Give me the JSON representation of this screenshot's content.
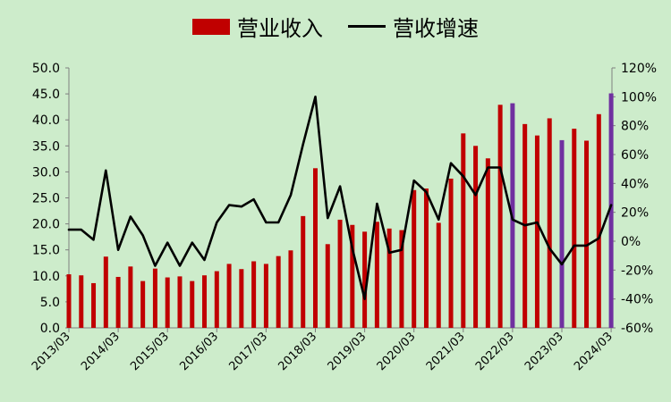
{
  "chart_data": {
    "type": "bar+line",
    "legend": {
      "bar_label": "营业收入",
      "line_label": "营收增速"
    },
    "x_labels": [
      "2013/03",
      "2014/03",
      "2015/03",
      "2016/03",
      "2017/03",
      "2018/03",
      "2019/03",
      "2020/03",
      "2021/03",
      "2022/03",
      "2023/03",
      "2024/03"
    ],
    "left_axis": {
      "min": 0,
      "max": 50,
      "step": 5,
      "tick_labels": [
        "0.0",
        "5.0",
        "10.0",
        "15.0",
        "20.0",
        "25.0",
        "30.0",
        "35.0",
        "40.0",
        "45.0",
        "50.0"
      ]
    },
    "right_axis": {
      "min": -60,
      "max": 120,
      "step": 20,
      "tick_labels": [
        "-60%",
        "-40%",
        "-20%",
        "0%",
        "20%",
        "40%",
        "60%",
        "80%",
        "100%",
        "120%"
      ]
    },
    "series": [
      {
        "name": "营业收入",
        "kind": "bar",
        "values": [
          10.3,
          10.1,
          8.6,
          13.7,
          9.8,
          11.8,
          9.0,
          11.4,
          9.7,
          9.9,
          9.0,
          10.1,
          10.9,
          12.3,
          11.3,
          12.8,
          12.3,
          13.8,
          14.9,
          21.5,
          30.7,
          16.1,
          20.8,
          19.8,
          18.5,
          20.4,
          19.1,
          18.8,
          26.5,
          26.8,
          20.2,
          28.7,
          37.4,
          35.0,
          32.6,
          42.9,
          43.2,
          39.2,
          37.0,
          40.3,
          36.1,
          38.3,
          36.0,
          41.1,
          45.1
        ]
      },
      {
        "name": "营收增速",
        "kind": "line",
        "axis": "right",
        "values": [
          8,
          8,
          1,
          49,
          -6,
          17,
          4,
          -17,
          -1,
          -17,
          -1,
          -13,
          13,
          25,
          24,
          29,
          13,
          13,
          32,
          67,
          100,
          16,
          38,
          -5,
          -40,
          26,
          -8,
          -6,
          42,
          34,
          15,
          54,
          45,
          32,
          51,
          51,
          15,
          11,
          13,
          -5,
          -16,
          -3,
          -3,
          2,
          25
        ]
      }
    ],
    "highlight_indices": [
      36,
      40,
      44
    ],
    "colors": {
      "bar": "#c00000",
      "bar_highlight": "#7030a0",
      "line": "#000000",
      "background": "#cdeccb",
      "axis": "#7f7f7f"
    }
  }
}
